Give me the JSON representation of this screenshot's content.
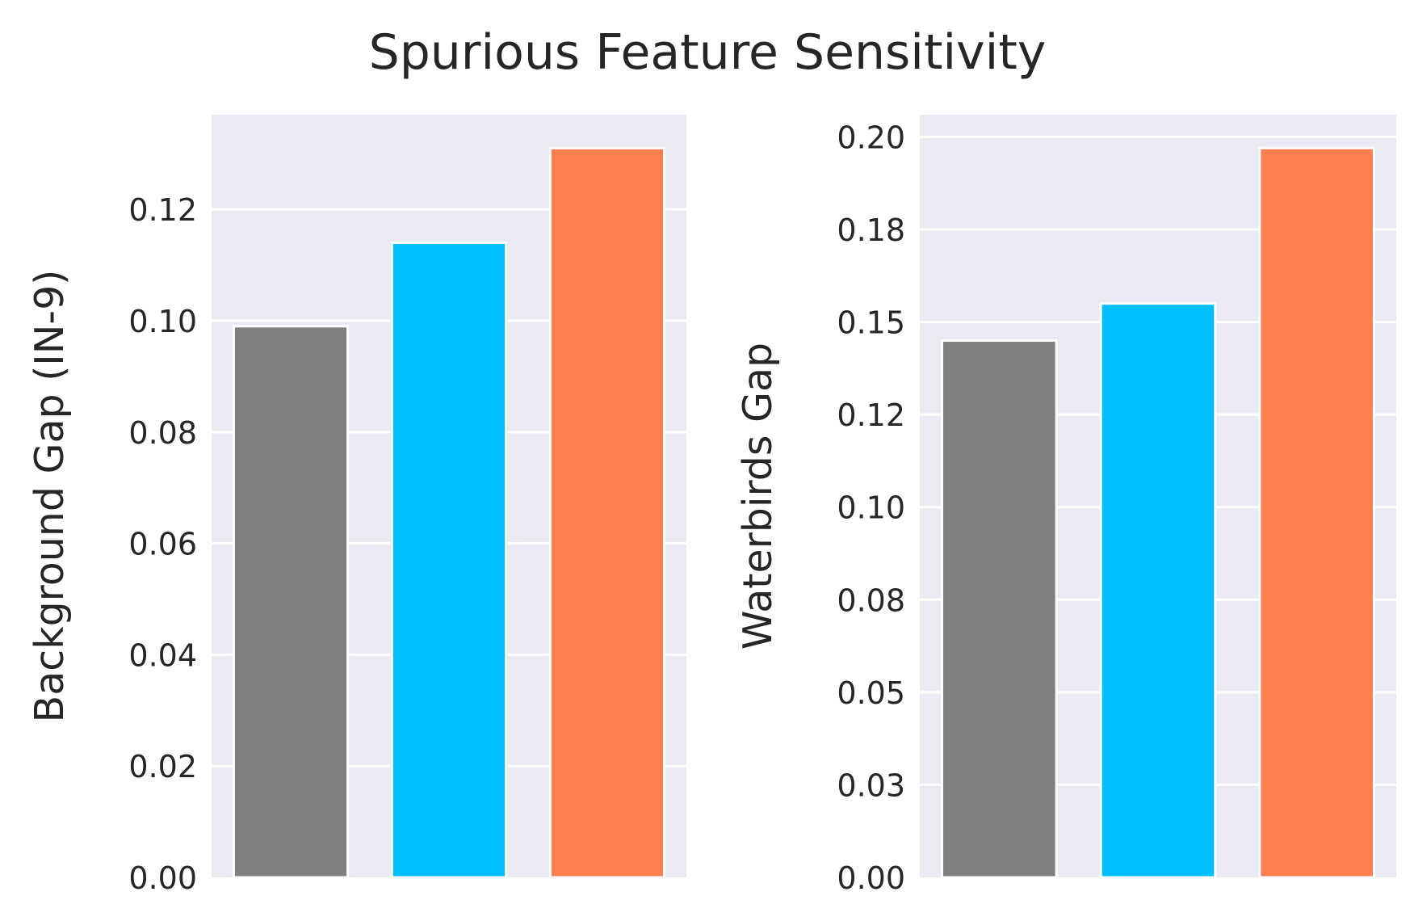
{
  "figure": {
    "title": "Spurious Feature Sensitivity"
  },
  "chart_data": [
    {
      "type": "bar",
      "title": "",
      "xlabel": "",
      "ylabel": "Background Gap (IN-9)",
      "categories": [
        "",
        "",
        ""
      ],
      "values": [
        0.099,
        0.114,
        0.131
      ],
      "colors": [
        "#808080",
        "#00bfff",
        "#ff7f50"
      ],
      "ylim": [
        0,
        0.137
      ],
      "yticks": [
        0.0,
        0.02,
        0.04,
        0.06,
        0.08,
        0.1,
        0.12
      ],
      "ytick_labels": [
        "0.00",
        "0.02",
        "0.04",
        "0.06",
        "0.08",
        "0.10",
        "0.12"
      ],
      "grid": true,
      "background": "#eaeaf2"
    },
    {
      "type": "bar",
      "title": "",
      "xlabel": "",
      "ylabel": "Waterbirds Gap",
      "categories": [
        "",
        "",
        ""
      ],
      "values": [
        0.145,
        0.155,
        0.197
      ],
      "colors": [
        "#808080",
        "#00bfff",
        "#ff7f50"
      ],
      "ylim": [
        0,
        0.206
      ],
      "yticks": [
        0.0,
        0.025,
        0.05,
        0.075,
        0.1,
        0.125,
        0.15,
        0.175,
        0.2
      ],
      "ytick_labels": [
        "0.00",
        "0.03",
        "0.05",
        "0.08",
        "0.10",
        "0.12",
        "0.15",
        "0.18",
        "0.20"
      ],
      "grid": true,
      "background": "#eaeaf2"
    }
  ]
}
